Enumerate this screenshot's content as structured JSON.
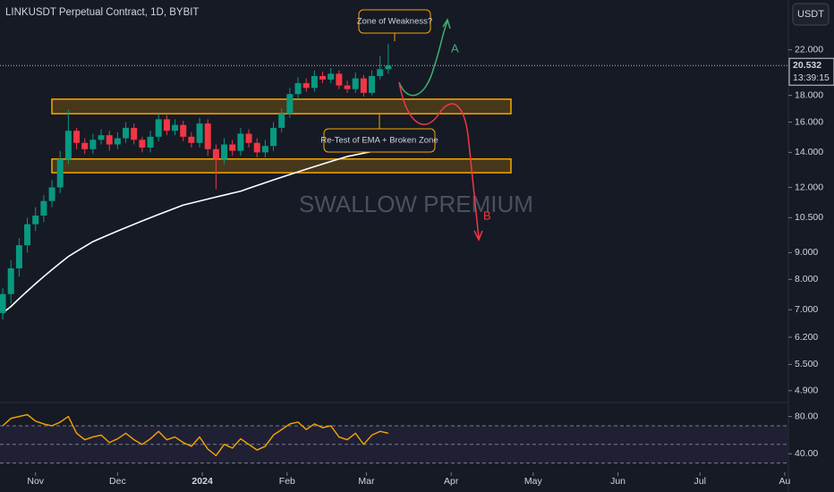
{
  "header": {
    "title": "LINKUSDT Perpetual Contract, 1D, BYBIT",
    "currency": "USDT"
  },
  "watermark": "SWALLOW PREMIUM",
  "annotations": {
    "top": "Zone of Weakness?",
    "bottom": "Re-Test of EMA + Broken Zone",
    "path_a": "A",
    "path_b": "B"
  },
  "chart_data": {
    "type": "candlestick",
    "log_scale": true,
    "x": [
      19,
      22,
      25,
      28,
      31,
      34,
      37,
      40,
      43,
      46,
      49,
      52,
      55,
      58,
      61,
      64,
      67,
      70,
      73,
      76,
      79,
      82,
      85,
      88,
      91,
      94,
      97,
      100,
      103,
      106,
      109,
      112,
      115,
      118,
      121,
      124,
      127,
      130,
      133,
      136,
      139,
      142,
      145,
      148,
      151,
      154,
      157,
      160
    ],
    "open": [
      6.9,
      7.5,
      8.4,
      9.3,
      10.2,
      10.6,
      11.3,
      12.0,
      13.6,
      15.4,
      14.6,
      14.2,
      14.8,
      15.1,
      14.5,
      14.9,
      15.6,
      14.8,
      14.3,
      15.0,
      16.2,
      15.4,
      15.8,
      15.0,
      14.6,
      15.9,
      14.2,
      13.6,
      14.5,
      14.1,
      15.2,
      14.6,
      14.0,
      14.4,
      15.6,
      16.6,
      18.1,
      19.0,
      18.6,
      19.6,
      19.3,
      19.8,
      18.8,
      18.5,
      19.4,
      18.2,
      19.6,
      20.2
    ],
    "high": [
      7.7,
      8.7,
      9.6,
      10.5,
      11.0,
      11.6,
      12.4,
      14.1,
      16.9,
      15.6,
      14.9,
      15.2,
      15.5,
      15.4,
      15.3,
      16.0,
      15.9,
      15.0,
      15.4,
      16.6,
      16.5,
      16.2,
      16.1,
      15.3,
      16.3,
      16.2,
      14.5,
      14.9,
      14.8,
      15.6,
      15.5,
      14.9,
      14.8,
      16.0,
      17.0,
      18.6,
      19.5,
      19.4,
      20.1,
      20.0,
      20.3,
      20.1,
      19.2,
      19.9,
      19.7,
      20.1,
      21.4,
      22.6
    ],
    "low": [
      6.7,
      7.2,
      8.1,
      9.0,
      9.9,
      10.3,
      11.0,
      11.7,
      13.3,
      14.2,
      13.9,
      13.9,
      14.5,
      14.1,
      14.2,
      14.6,
      14.5,
      14.0,
      14.0,
      14.7,
      15.1,
      15.1,
      14.7,
      14.3,
      14.3,
      13.8,
      11.9,
      13.3,
      13.8,
      13.8,
      14.3,
      13.7,
      13.7,
      14.1,
      15.3,
      16.3,
      17.7,
      18.3,
      18.3,
      19.0,
      19.0,
      18.5,
      18.2,
      18.2,
      17.9,
      18.0,
      19.3,
      19.8
    ],
    "close": [
      7.5,
      8.4,
      9.3,
      10.2,
      10.6,
      11.3,
      12.0,
      13.6,
      15.4,
      14.6,
      14.2,
      14.8,
      15.1,
      14.5,
      14.9,
      15.6,
      14.8,
      14.3,
      15.0,
      16.2,
      15.4,
      15.8,
      15.0,
      14.6,
      15.9,
      14.2,
      13.6,
      14.5,
      14.1,
      15.2,
      14.6,
      14.0,
      14.4,
      15.6,
      16.6,
      18.1,
      19.0,
      18.6,
      19.6,
      19.3,
      19.8,
      18.8,
      18.5,
      19.4,
      18.2,
      19.6,
      20.2,
      20.5
    ],
    "up_color": "#089981",
    "down_color": "#f23645",
    "ema": {
      "color": "#ffffff",
      "values": [
        6.9,
        7.1,
        7.35,
        7.6,
        7.85,
        8.1,
        8.35,
        8.6,
        8.85,
        9.05,
        9.25,
        9.45,
        9.6,
        9.75,
        9.9,
        10.05,
        10.2,
        10.35,
        10.5,
        10.65,
        10.8,
        10.95,
        11.1,
        11.2,
        11.3,
        11.4,
        11.5,
        11.6,
        11.7,
        11.8,
        11.95,
        12.1,
        12.25,
        12.4,
        12.55,
        12.7,
        12.85,
        13.0,
        13.15,
        13.3,
        13.45,
        13.6,
        13.75,
        13.85,
        13.95,
        14.05,
        14.15,
        14.3
      ]
    },
    "zones": [
      {
        "from": 16.6,
        "to": 17.7
      },
      {
        "from": 12.8,
        "to": 13.6
      }
    ],
    "zone_color": "#f7a600",
    "last_price": {
      "value": 20.532,
      "label": "20.532"
    },
    "countdown": "13:39:15",
    "xlim": [
      18,
      306
    ],
    "xticks": [
      {
        "value": 31,
        "label": "Nov"
      },
      {
        "value": 61,
        "label": "Dec"
      },
      {
        "value": 92,
        "label": "2024"
      },
      {
        "value": 123,
        "label": "Feb"
      },
      {
        "value": 152,
        "label": "Mar"
      },
      {
        "value": 183,
        "label": "Apr"
      },
      {
        "value": 213,
        "label": "May"
      },
      {
        "value": 244,
        "label": "Jun"
      },
      {
        "value": 274,
        "label": "Jul"
      },
      {
        "value": 305,
        "label": "Au"
      }
    ],
    "ylim": [
      4.65,
      27.4
    ],
    "yticks": [
      {
        "value": 22,
        "label": "22.000"
      },
      {
        "value": 18,
        "label": "18.000"
      },
      {
        "value": 16,
        "label": "16.000"
      },
      {
        "value": 14,
        "label": "14.000"
      },
      {
        "value": 12,
        "label": "12.000"
      },
      {
        "value": 10.5,
        "label": "10.500"
      },
      {
        "value": 9,
        "label": "9.000"
      },
      {
        "value": 8,
        "label": "8.000"
      },
      {
        "value": 7,
        "label": "7.000"
      },
      {
        "value": 6.2,
        "label": "6.200"
      },
      {
        "value": 5.5,
        "label": "5.500"
      },
      {
        "value": 4.9,
        "label": "4.900"
      }
    ],
    "rsi": {
      "color": "#f7a600",
      "values": [
        70,
        78,
        80,
        82,
        75,
        72,
        70,
        74,
        80,
        62,
        55,
        58,
        60,
        52,
        56,
        62,
        55,
        50,
        56,
        64,
        55,
        58,
        52,
        48,
        58,
        45,
        38,
        50,
        46,
        56,
        50,
        44,
        48,
        60,
        66,
        72,
        74,
        66,
        72,
        68,
        70,
        58,
        55,
        62,
        50,
        60,
        64,
        62
      ],
      "ylim": [
        20,
        95
      ],
      "yticks": [
        {
          "value": 80,
          "label": "80.00"
        },
        {
          "value": 40,
          "label": "40.00"
        }
      ],
      "levels": [
        70,
        50,
        30
      ]
    }
  }
}
